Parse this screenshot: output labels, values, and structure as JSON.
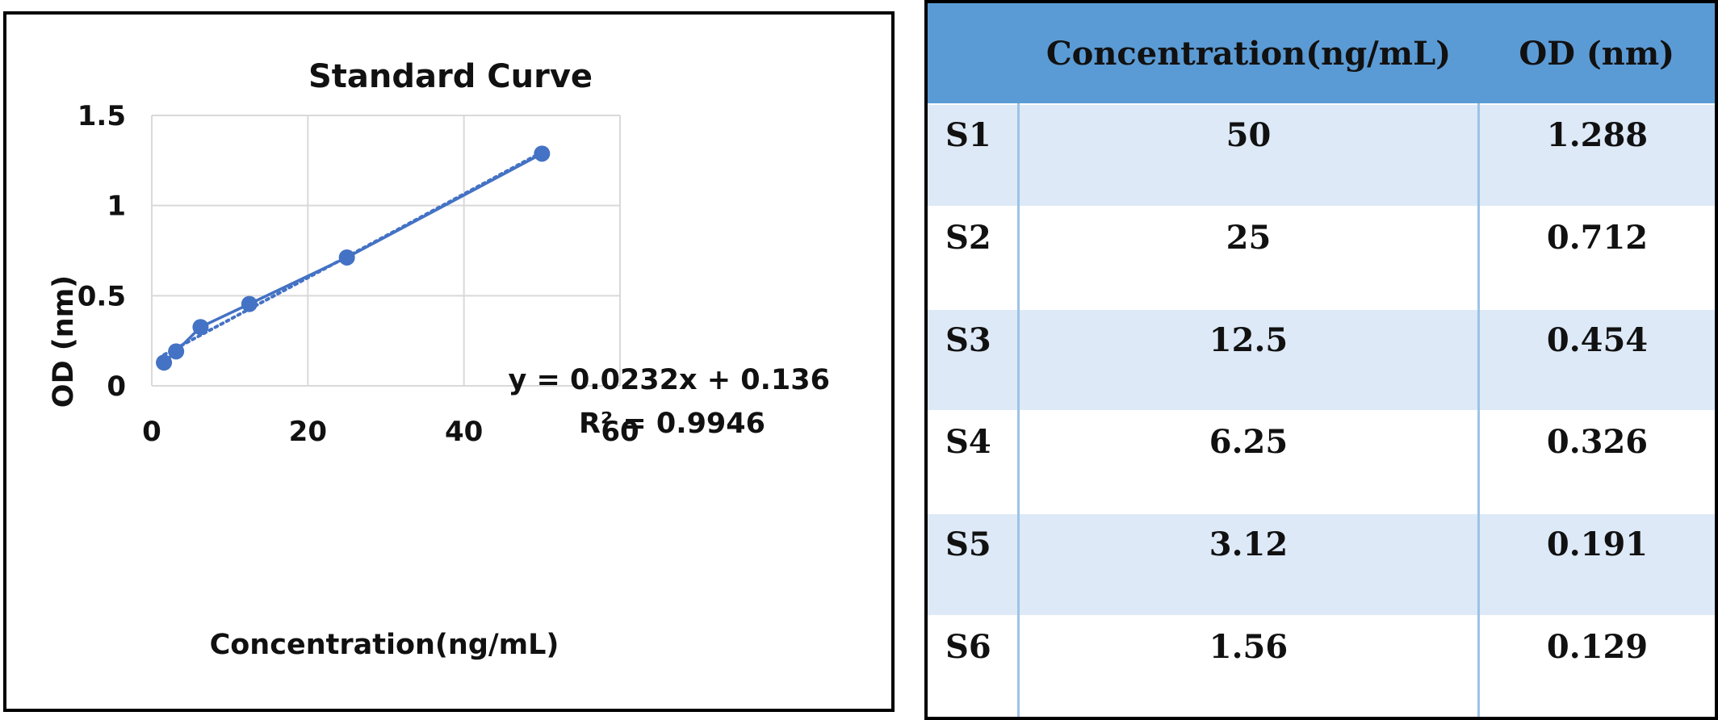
{
  "chart_data": {
    "type": "scatter",
    "title": "Standard Curve",
    "xlabel": "Concentration(ng/mL)",
    "ylabel": "OD (nm)",
    "xlim": [
      0,
      60
    ],
    "ylim": [
      0,
      1.5
    ],
    "x_ticks": [
      0,
      20,
      40,
      60
    ],
    "y_ticks": [
      0,
      0.5,
      1,
      1.5
    ],
    "y_tick_labels": [
      "0",
      "0.5",
      "1",
      "1.5"
    ],
    "grid": true,
    "series": [
      {
        "x": [
          1.56,
          3.12,
          6.25,
          12.5,
          25,
          50
        ],
        "y": [
          0.129,
          0.191,
          0.326,
          0.454,
          0.712,
          1.288
        ],
        "color": "#4472c4"
      }
    ],
    "trendline": {
      "slope": 0.0232,
      "intercept": 0.136,
      "equation": "y = 0.0232x + 0.136",
      "r_squared": "R² = 0.9946"
    }
  },
  "table": {
    "headers": [
      "",
      "Concentration(ng/mL)",
      "OD (nm)"
    ],
    "rows": [
      {
        "label": "S1",
        "conc": "50",
        "od": "1.288"
      },
      {
        "label": "S2",
        "conc": "25",
        "od": "0.712"
      },
      {
        "label": "S3",
        "conc": "12.5",
        "od": "0.454"
      },
      {
        "label": "S4",
        "conc": "6.25",
        "od": "0.326"
      },
      {
        "label": "S5",
        "conc": "3.12",
        "od": "0.191"
      },
      {
        "label": "S6",
        "conc": "1.56",
        "od": "0.129"
      }
    ]
  }
}
